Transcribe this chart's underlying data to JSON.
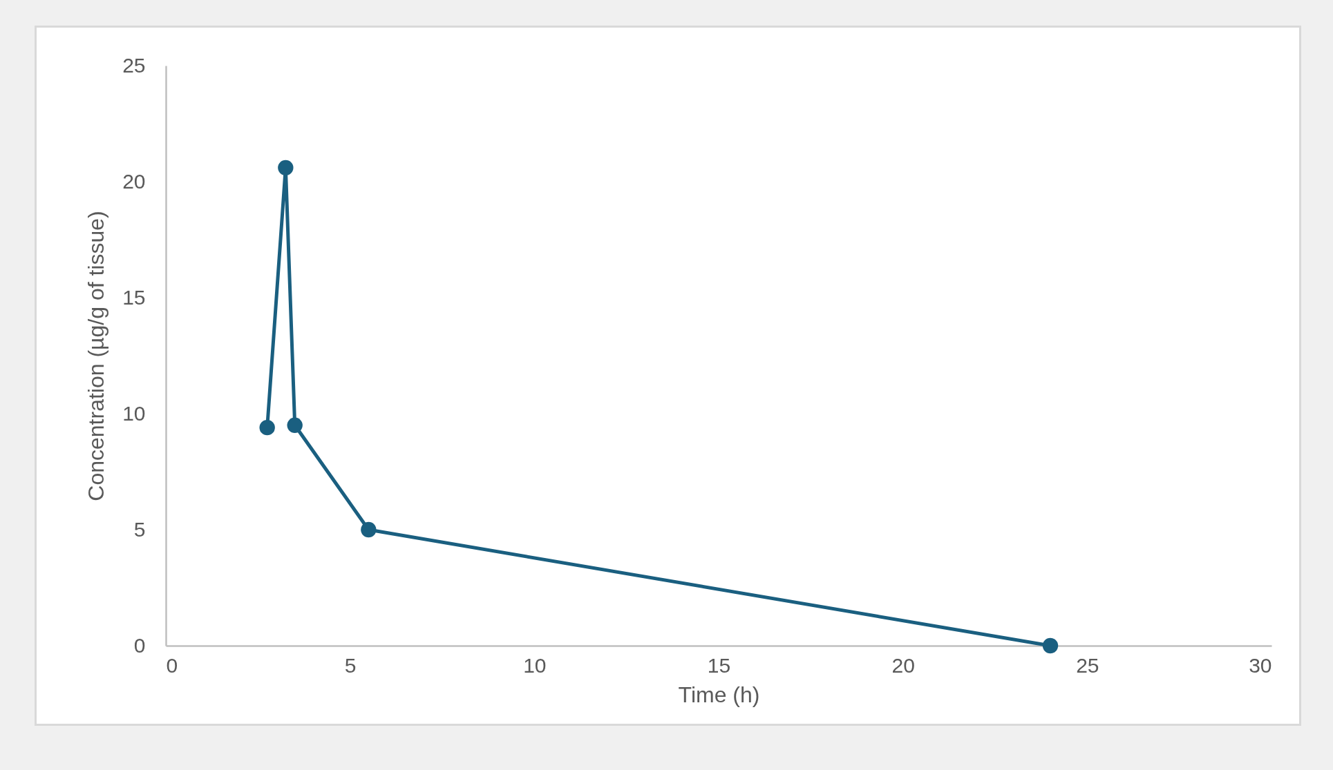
{
  "chart_data": {
    "type": "line",
    "xlabel": "Time (h)",
    "ylabel": "Concentration (µg/g of tissue)",
    "x": [
      2.75,
      3.25,
      3.5,
      5.5,
      24
    ],
    "series": [
      {
        "color": "#1a5f80",
        "values": [
          9.4,
          20.6,
          9.5,
          5.0,
          0
        ]
      }
    ],
    "xlim": [
      0,
      30
    ],
    "xticks": [
      0,
      5,
      10,
      15,
      20,
      25,
      30
    ],
    "ylim": [
      0,
      25
    ],
    "yticks": [
      0,
      5,
      10,
      15,
      20,
      25
    ],
    "grid": false,
    "marker": "circle",
    "line_style": "solid"
  }
}
